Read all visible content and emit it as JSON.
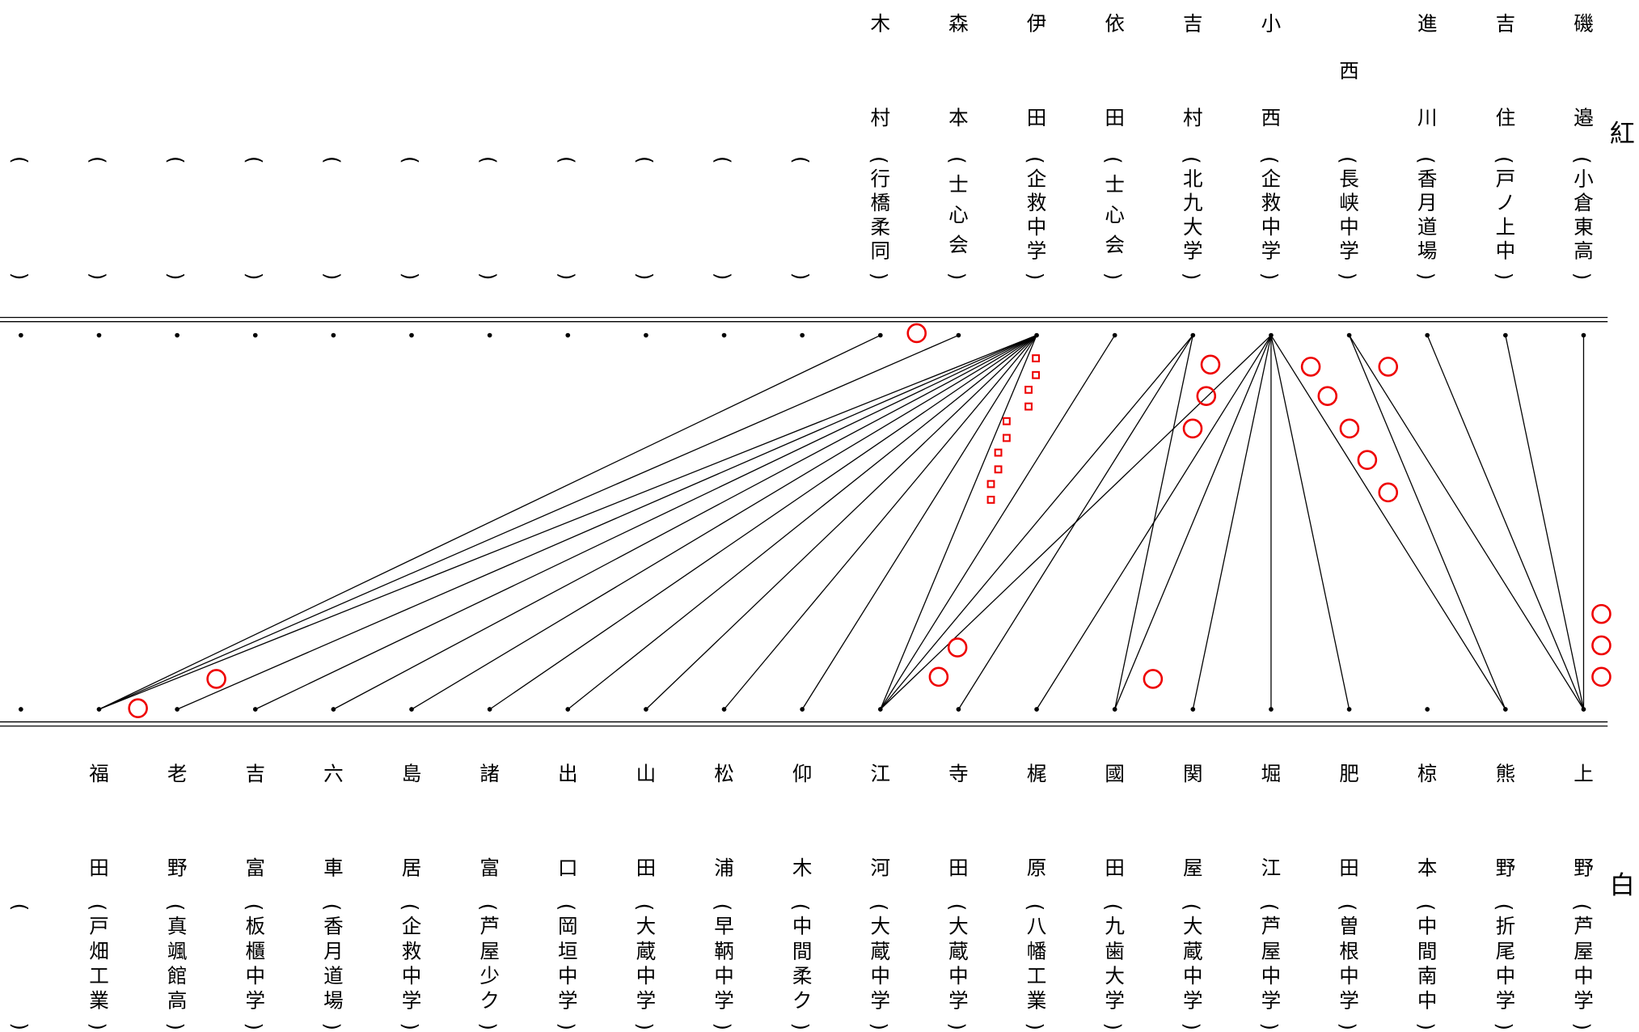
{
  "red_team": {
    "label": "紅",
    "players": [
      {
        "affiliation": "()"
      },
      {
        "affiliation": "()"
      },
      {
        "affiliation": "()"
      },
      {
        "affiliation": "()"
      },
      {
        "affiliation": "()"
      },
      {
        "affiliation": "()"
      },
      {
        "affiliation": "()"
      },
      {
        "affiliation": "()"
      },
      {
        "affiliation": "()"
      },
      {
        "affiliation": "()"
      },
      {
        "affiliation": "()"
      },
      {
        "name": "木村",
        "affiliation": "(行橋柔同)"
      },
      {
        "name": "森本",
        "affiliation": "(士心会)"
      },
      {
        "name": "伊田",
        "affiliation": "(企救中学)"
      },
      {
        "name": "依田",
        "affiliation": "(士心会)"
      },
      {
        "name": "吉村",
        "affiliation": "(北九大学)"
      },
      {
        "name": "小西",
        "affiliation": "(企救中学)"
      },
      {
        "name": "西",
        "affiliation": "(長峡中学)"
      },
      {
        "name": "進川",
        "affiliation": "(香月道場)"
      },
      {
        "name": "吉住",
        "affiliation": "(戸ノ上中)"
      },
      {
        "name": "磯邉",
        "affiliation": "(小倉東高)"
      }
    ]
  },
  "white_team": {
    "label": "白",
    "players": [
      {
        "affiliation": "()"
      },
      {
        "name": "福田",
        "affiliation": "(戸畑工業)"
      },
      {
        "name": "老野",
        "affiliation": "(真颯館高)"
      },
      {
        "name": "吉富",
        "affiliation": "(板櫃中学)"
      },
      {
        "name": "六車",
        "affiliation": "(香月道場)"
      },
      {
        "name": "島居",
        "affiliation": "(企救中学)"
      },
      {
        "name": "諸富",
        "affiliation": "(芦屋少ク)"
      },
      {
        "name": "出口",
        "affiliation": "(岡垣中学)"
      },
      {
        "name": "山田",
        "affiliation": "(大蔵中学)"
      },
      {
        "name": "松浦",
        "affiliation": "(早鞆中学)"
      },
      {
        "name": "仰木",
        "affiliation": "(中間柔ク)"
      },
      {
        "name": "江河",
        "affiliation": "(大蔵中学)"
      },
      {
        "name": "寺田",
        "affiliation": "(大蔵中学)"
      },
      {
        "name": "梶原",
        "affiliation": "(八幡工業)"
      },
      {
        "name": "國田",
        "affiliation": "(九歯大学)"
      },
      {
        "name": "関屋",
        "affiliation": "(大蔵中学)"
      },
      {
        "name": "堀江",
        "affiliation": "(芦屋中学)"
      },
      {
        "name": "肥田",
        "affiliation": "(曽根中学)"
      },
      {
        "name": "椋本",
        "affiliation": "(中間南中)"
      },
      {
        "name": "熊野",
        "affiliation": "(折尾中学)"
      },
      {
        "name": "上野",
        "affiliation": "(芦屋中学)"
      }
    ]
  }
}
